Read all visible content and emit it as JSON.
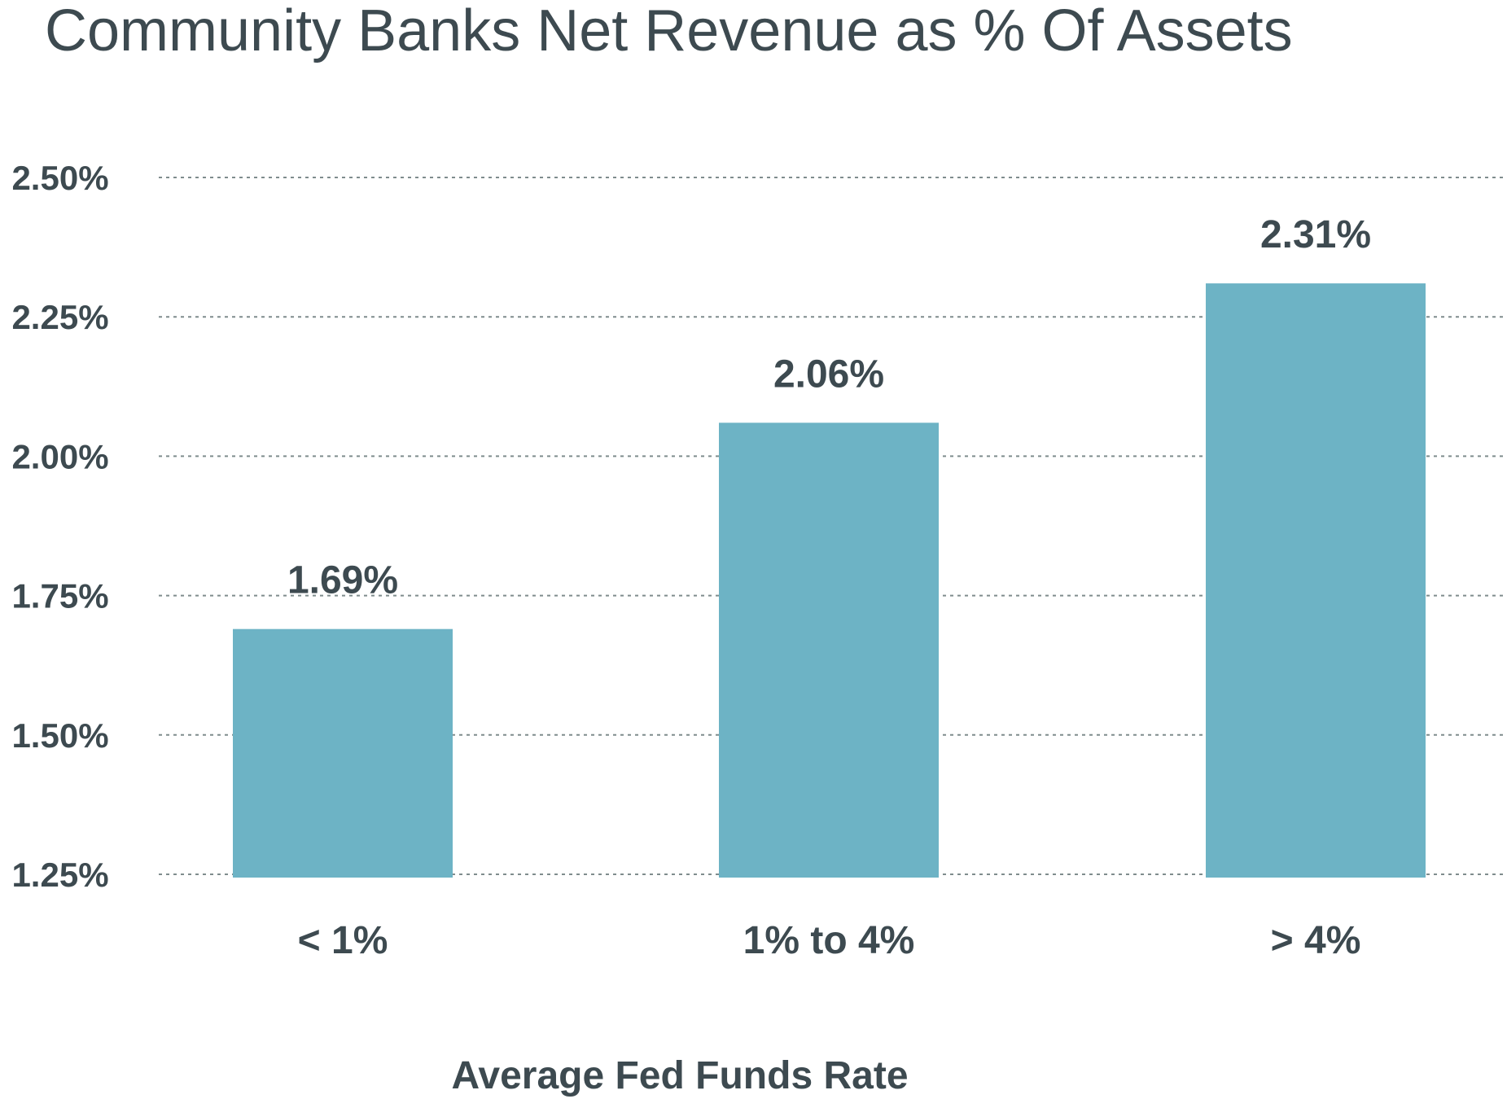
{
  "chart_data": {
    "type": "bar",
    "title": "Community Banks Net Revenue as % Of Assets",
    "xlabel": "Average Fed Funds Rate",
    "ylabel": "",
    "categories": [
      "< 1%",
      "1% to 4%",
      "> 4%"
    ],
    "values": [
      1.69,
      2.06,
      2.31
    ],
    "data_labels": [
      "1.69%",
      "2.06%",
      "2.31%"
    ],
    "ylim": [
      1.25,
      2.5
    ],
    "yticks": [
      1.25,
      1.5,
      1.75,
      2.0,
      2.25,
      2.5
    ],
    "ytick_labels": [
      "1.25%",
      "1.50%",
      "1.75%",
      "2.00%",
      "2.25%",
      "2.50%"
    ],
    "grid": true,
    "legend": "none",
    "colors": {
      "bar": "#6db3c5",
      "text": "#3d4a50",
      "grid": "#7f8c8d"
    }
  }
}
